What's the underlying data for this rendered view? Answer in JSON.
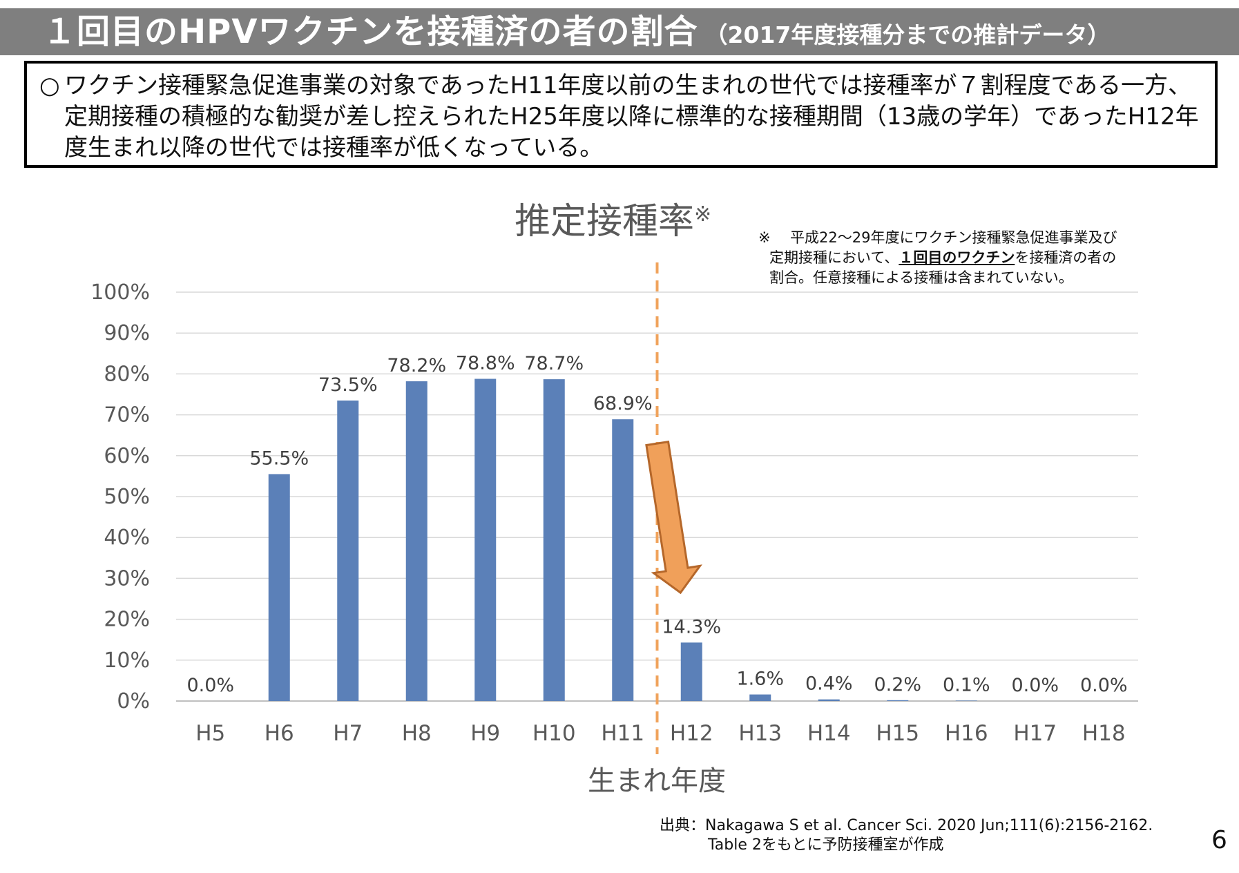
{
  "title": {
    "main": "１回目のHPVワクチンを接種済の者の割合",
    "sub": "（2017年度接種分までの推計データ）"
  },
  "summary": {
    "bullet": "○",
    "text": "ワクチン接種緊急促進事業の対象であったH11年度以前の生まれの世代では接種率が７割程度である一方、定期接種の積極的な勧奨が差し控えられたH25年度以降に標準的な接種期間（13歳の学年）であったH12年度生まれ以降の世代では接種率が低くなっている。"
  },
  "footnote": {
    "mark": "※",
    "line1": "平成22～29年度にワクチン接種緊急促進事業及び",
    "line2_pre": "定期接種において、",
    "line2_emph": "１回目のワクチン",
    "line2_post": "を接種済の者の",
    "line3": "割合。任意接種による接種は含まれていない。"
  },
  "source": {
    "line1": "出典：Nakagawa S et al. Cancer Sci. 2020 Jun;111(6):2156-2162.",
    "line2": "Table 2をもとに予防接種室が作成"
  },
  "page_number": "6",
  "chart_data": {
    "type": "bar",
    "title": "推定接種率",
    "title_mark": "※",
    "xlabel": "生まれ年度",
    "ylabel": "",
    "categories": [
      "H5",
      "H6",
      "H7",
      "H8",
      "H9",
      "H10",
      "H11",
      "H12",
      "H13",
      "H14",
      "H15",
      "H16",
      "H17",
      "H18"
    ],
    "values": [
      0.0,
      55.5,
      73.5,
      78.2,
      78.8,
      78.7,
      68.9,
      14.3,
      1.6,
      0.4,
      0.2,
      0.1,
      0.0,
      0.0
    ],
    "data_labels": [
      "0.0%",
      "55.5%",
      "73.5%",
      "78.2%",
      "78.8%",
      "78.7%",
      "68.9%",
      "14.3%",
      "1.6%",
      "0.4%",
      "0.2%",
      "0.1%",
      "0.0%",
      "0.0%"
    ],
    "ylim": [
      0,
      100
    ],
    "yticks": [
      0,
      10,
      20,
      30,
      40,
      50,
      60,
      70,
      80,
      90,
      100
    ],
    "ytick_labels": [
      "0%",
      "10%",
      "20%",
      "30%",
      "40%",
      "50%",
      "60%",
      "70%",
      "80%",
      "90%",
      "100%"
    ],
    "grid": true,
    "legend": "none",
    "bar_color": "#5b80b8",
    "divider": {
      "between": [
        "H11",
        "H12"
      ],
      "style": "dashed",
      "color": "#f0a35c"
    },
    "arrow": {
      "from": "H11",
      "to": "H12",
      "color": "#f0a05a",
      "outline": "#b5672a"
    }
  }
}
